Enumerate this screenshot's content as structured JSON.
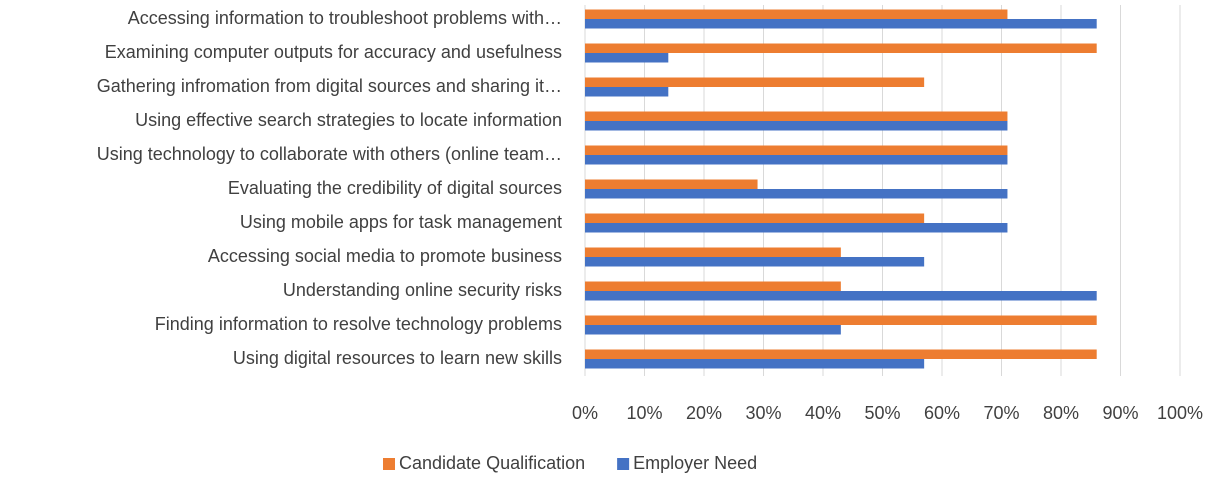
{
  "chart_data": {
    "type": "barh",
    "categories": [
      "Accessing information to troubleshoot problems with…",
      "Examining computer outputs for accuracy and usefulness",
      "Gathering infromation from digital sources and sharing it…",
      "Using effective search strategies to locate information",
      "Using technology to collaborate with others (online team…",
      "Evaluating the credibility of digital sources",
      "Using mobile apps for task management",
      "Accessing social media to promote business",
      "Understanding online security risks",
      "Finding information to resolve technology problems",
      "Using digital resources to learn new skills"
    ],
    "series": [
      {
        "name": "Candidate Qualification",
        "color": "#ed7d31",
        "values": [
          71,
          86,
          57,
          71,
          71,
          29,
          57,
          43,
          43,
          86,
          86
        ]
      },
      {
        "name": "Employer Need",
        "color": "#4472c4",
        "values": [
          86,
          14,
          14,
          71,
          71,
          71,
          71,
          57,
          86,
          43,
          57
        ]
      }
    ],
    "xlim": [
      0,
      100
    ],
    "xticks": [
      {
        "value": 0,
        "label": "0%"
      },
      {
        "value": 10,
        "label": "10%"
      },
      {
        "value": 20,
        "label": "20%"
      },
      {
        "value": 30,
        "label": "30%"
      },
      {
        "value": 40,
        "label": "40%"
      },
      {
        "value": 50,
        "label": "50%"
      },
      {
        "value": 60,
        "label": "60%"
      },
      {
        "value": 70,
        "label": "70%"
      },
      {
        "value": 80,
        "label": "80%"
      },
      {
        "value": 90,
        "label": "90%"
      },
      {
        "value": 100,
        "label": "100%"
      }
    ],
    "grid": true,
    "legend": "bottom"
  }
}
